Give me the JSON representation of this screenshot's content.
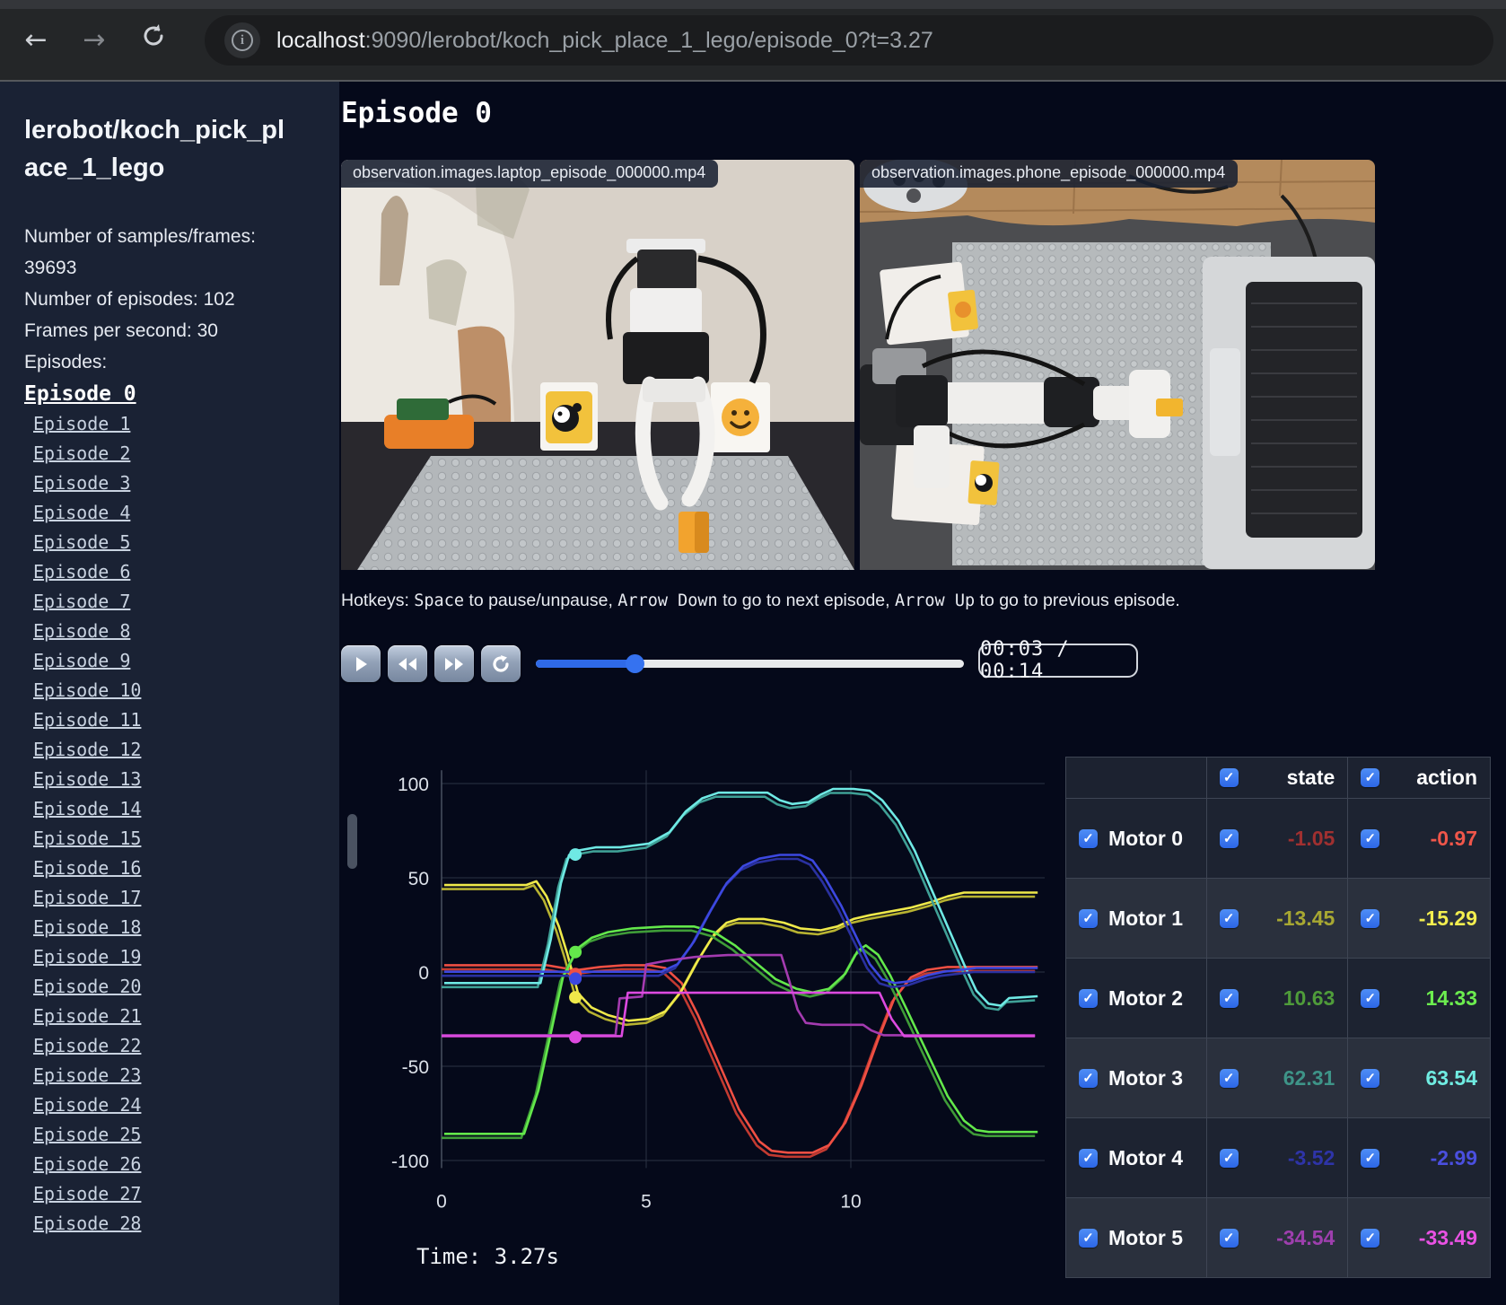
{
  "browser": {
    "url_host": "localhost",
    "url_rest": ":9090/lerobot/koch_pick_place_1_lego/episode_0?t=3.27",
    "back_icon": "←",
    "forward_icon": "→",
    "info_icon": "i"
  },
  "sidebar": {
    "title": "lerobot/koch_pick_place_1_lego",
    "stats_line1": "Number of samples/frames: 39693",
    "stats_line2": "Number of episodes: 102",
    "stats_line3": "Frames per second: 30",
    "episodes_label": "Episodes:",
    "active_episode": "Episode 0",
    "episodes": [
      "Episode 0",
      "Episode 1",
      "Episode 2",
      "Episode 3",
      "Episode 4",
      "Episode 5",
      "Episode 6",
      "Episode 7",
      "Episode 8",
      "Episode 9",
      "Episode 10",
      "Episode 11",
      "Episode 12",
      "Episode 13",
      "Episode 14",
      "Episode 15",
      "Episode 16",
      "Episode 17",
      "Episode 18",
      "Episode 19",
      "Episode 20",
      "Episode 21",
      "Episode 22",
      "Episode 23",
      "Episode 24",
      "Episode 25",
      "Episode 26",
      "Episode 27",
      "Episode 28"
    ]
  },
  "main": {
    "heading": "Episode 0",
    "videos": [
      {
        "title": "observation.images.laptop_episode_000000.mp4"
      },
      {
        "title": "observation.images.phone_episode_000000.mp4"
      }
    ],
    "hotkeys": [
      {
        "text": "Hotkeys: ",
        "mono": false
      },
      {
        "text": "Space",
        "mono": true
      },
      {
        "text": " to pause/unpause, ",
        "mono": false
      },
      {
        "text": "Arrow Down",
        "mono": true
      },
      {
        "text": " to go to next episode, ",
        "mono": false
      },
      {
        "text": "Arrow Up",
        "mono": true
      },
      {
        "text": " to go to previous episode.",
        "mono": false
      }
    ],
    "player": {
      "time_display": "00:03 / 00:14",
      "progress_percent": 23,
      "buttons": [
        "play",
        "rewind",
        "fast-forward",
        "loop"
      ]
    }
  },
  "chart_data": {
    "type": "line",
    "title": "",
    "xlabel": "",
    "ylabel": "",
    "x_ticks": [
      0,
      5,
      10
    ],
    "y_ticks": [
      100,
      50,
      0,
      -50,
      -100
    ],
    "xlim": [
      0,
      14.8
    ],
    "ylim": [
      -110,
      110
    ],
    "grid": true,
    "time_label": "Time: 3.27s",
    "current_time": 3.27,
    "series": [
      {
        "name": "Motor 0",
        "state_color": "#c23a31",
        "action_color": "#ef4f43",
        "state_at_t": -1.05,
        "points": [
          [
            0,
            1.5
          ],
          [
            2.5,
            1.5
          ],
          [
            2.9,
            0
          ],
          [
            3.27,
            -1.05
          ],
          [
            3.8,
            0.5
          ],
          [
            4.4,
            1.5
          ],
          [
            5.0,
            1.5
          ],
          [
            5.4,
            0
          ],
          [
            5.8,
            -8
          ],
          [
            6.2,
            -25
          ],
          [
            6.7,
            -50
          ],
          [
            7.2,
            -75
          ],
          [
            7.7,
            -92
          ],
          [
            8.0,
            -97
          ],
          [
            8.4,
            -98
          ],
          [
            9.0,
            -98
          ],
          [
            9.4,
            -94
          ],
          [
            9.8,
            -82
          ],
          [
            10.2,
            -62
          ],
          [
            10.6,
            -38
          ],
          [
            11.0,
            -16
          ],
          [
            11.4,
            -5
          ],
          [
            11.8,
            -1
          ],
          [
            12.3,
            0.5
          ],
          [
            14.5,
            0.5
          ]
        ]
      },
      {
        "name": "Motor 1",
        "state_color": "#b8b331",
        "action_color": "#efe94a",
        "state_at_t": -13.45,
        "points": [
          [
            0,
            44
          ],
          [
            2.0,
            44
          ],
          [
            2.25,
            46
          ],
          [
            2.5,
            38
          ],
          [
            2.8,
            22
          ],
          [
            3.0,
            8
          ],
          [
            3.27,
            -13.45
          ],
          [
            3.6,
            -21
          ],
          [
            4.0,
            -25
          ],
          [
            4.5,
            -28
          ],
          [
            5.0,
            -27
          ],
          [
            5.4,
            -23
          ],
          [
            5.8,
            -12
          ],
          [
            6.2,
            4
          ],
          [
            6.6,
            18
          ],
          [
            6.9,
            24
          ],
          [
            7.2,
            26
          ],
          [
            7.8,
            26
          ],
          [
            8.3,
            24
          ],
          [
            8.7,
            21
          ],
          [
            9.2,
            20
          ],
          [
            9.6,
            22
          ],
          [
            10.0,
            26
          ],
          [
            10.4,
            28
          ],
          [
            10.9,
            30
          ],
          [
            11.4,
            32
          ],
          [
            11.9,
            35
          ],
          [
            12.3,
            38
          ],
          [
            12.7,
            40
          ],
          [
            14.5,
            40
          ]
        ]
      },
      {
        "name": "Motor 2",
        "state_color": "#3f9c38",
        "action_color": "#63e84b",
        "state_at_t": 10.63,
        "points": [
          [
            0,
            -88
          ],
          [
            1.95,
            -88
          ],
          [
            2.3,
            -65
          ],
          [
            2.6,
            -35
          ],
          [
            2.9,
            -5
          ],
          [
            3.27,
            10.63
          ],
          [
            3.6,
            16
          ],
          [
            4.0,
            19
          ],
          [
            4.6,
            21
          ],
          [
            5.4,
            22
          ],
          [
            6.1,
            22
          ],
          [
            6.6,
            19
          ],
          [
            7.1,
            12
          ],
          [
            7.6,
            3
          ],
          [
            8.1,
            -6
          ],
          [
            8.6,
            -11
          ],
          [
            9.0,
            -13
          ],
          [
            9.4,
            -11
          ],
          [
            9.8,
            -3
          ],
          [
            10.1,
            9
          ],
          [
            10.3,
            12
          ],
          [
            10.6,
            7
          ],
          [
            10.9,
            -4
          ],
          [
            11.3,
            -22
          ],
          [
            11.8,
            -45
          ],
          [
            12.3,
            -68
          ],
          [
            12.7,
            -81
          ],
          [
            13.0,
            -86
          ],
          [
            13.3,
            -87
          ],
          [
            14.5,
            -87
          ]
        ]
      },
      {
        "name": "Motor 3",
        "state_color": "#3fa096",
        "action_color": "#6fe9e4",
        "state_at_t": 62.31,
        "points": [
          [
            0,
            -8
          ],
          [
            2.35,
            -8
          ],
          [
            2.6,
            15
          ],
          [
            2.85,
            45
          ],
          [
            3.05,
            60
          ],
          [
            3.27,
            62.31
          ],
          [
            3.7,
            64
          ],
          [
            4.3,
            64
          ],
          [
            5.0,
            66
          ],
          [
            5.5,
            72
          ],
          [
            5.9,
            83
          ],
          [
            6.3,
            90
          ],
          [
            6.7,
            93
          ],
          [
            7.3,
            93
          ],
          [
            7.9,
            93
          ],
          [
            8.2,
            89
          ],
          [
            8.5,
            87
          ],
          [
            8.9,
            88
          ],
          [
            9.2,
            92
          ],
          [
            9.5,
            95
          ],
          [
            10.0,
            95
          ],
          [
            10.4,
            94
          ],
          [
            10.7,
            89
          ],
          [
            11.1,
            78
          ],
          [
            11.5,
            62
          ],
          [
            11.9,
            42
          ],
          [
            12.3,
            22
          ],
          [
            12.7,
            2
          ],
          [
            13.0,
            -12
          ],
          [
            13.3,
            -19
          ],
          [
            13.6,
            -20
          ],
          [
            13.8,
            -16
          ],
          [
            14.5,
            -15
          ]
        ]
      },
      {
        "name": "Motor 4",
        "state_color": "#2a31a0",
        "action_color": "#3c48e0",
        "state_at_t": -3.52,
        "points": [
          [
            0,
            -2
          ],
          [
            5.3,
            -2
          ],
          [
            5.7,
            2
          ],
          [
            6.1,
            14
          ],
          [
            6.5,
            30
          ],
          [
            6.9,
            45
          ],
          [
            7.3,
            54
          ],
          [
            7.7,
            58
          ],
          [
            8.2,
            60
          ],
          [
            8.7,
            60
          ],
          [
            9.0,
            57
          ],
          [
            9.3,
            48
          ],
          [
            9.7,
            33
          ],
          [
            10.1,
            15
          ],
          [
            10.4,
            2
          ],
          [
            10.7,
            -6
          ],
          [
            11.0,
            -8
          ],
          [
            11.4,
            -7
          ],
          [
            11.8,
            -4
          ],
          [
            12.2,
            -2
          ],
          [
            12.6,
            -1
          ],
          [
            13.0,
            0
          ],
          [
            14.5,
            0
          ]
        ]
      },
      {
        "name": "Motor 5",
        "state_color": "#a43bb0",
        "action_color": "#dd4ae0",
        "state_at_t": -34.54,
        "points": [
          [
            0,
            -33.5
          ],
          [
            4.25,
            -33.5
          ],
          [
            4.35,
            -14
          ],
          [
            4.9,
            -13
          ],
          [
            5.0,
            4
          ],
          [
            5.5,
            6
          ],
          [
            6.2,
            8
          ],
          [
            7.0,
            9
          ],
          [
            8.3,
            9
          ],
          [
            8.5,
            -5
          ],
          [
            8.7,
            -20
          ],
          [
            8.9,
            -27
          ],
          [
            9.3,
            -28
          ],
          [
            10.3,
            -28
          ],
          [
            10.5,
            -31
          ],
          [
            10.8,
            -33.5
          ],
          [
            14.5,
            -33.5
          ]
        ],
        "action_points": [
          [
            0,
            -34
          ],
          [
            4.4,
            -34
          ],
          [
            4.55,
            -11
          ],
          [
            10.7,
            -11
          ],
          [
            11.0,
            -25
          ],
          [
            11.3,
            -34
          ],
          [
            14.5,
            -34
          ]
        ]
      }
    ]
  },
  "motors_table": {
    "columns": [
      "state",
      "action"
    ],
    "rows": [
      {
        "name": "Motor 0",
        "state": "-1.05",
        "action": "-0.97",
        "state_color": "#a03030",
        "action_color": "#f0564a"
      },
      {
        "name": "Motor 1",
        "state": "-13.45",
        "action": "-15.29",
        "state_color": "#a8a832",
        "action_color": "#f3ee4f"
      },
      {
        "name": "Motor 2",
        "state": "10.63",
        "action": "14.33",
        "state_color": "#4f9c3a",
        "action_color": "#6ced4f"
      },
      {
        "name": "Motor 3",
        "state": "62.31",
        "action": "63.54",
        "state_color": "#3e9488",
        "action_color": "#70ece2"
      },
      {
        "name": "Motor 4",
        "state": "-3.52",
        "action": "-2.99",
        "state_color": "#2e34a8",
        "action_color": "#4a4fdf"
      },
      {
        "name": "Motor 5",
        "state": "-34.54",
        "action": "-33.49",
        "state_color": "#9e3fae",
        "action_color": "#ea52e4"
      }
    ]
  }
}
